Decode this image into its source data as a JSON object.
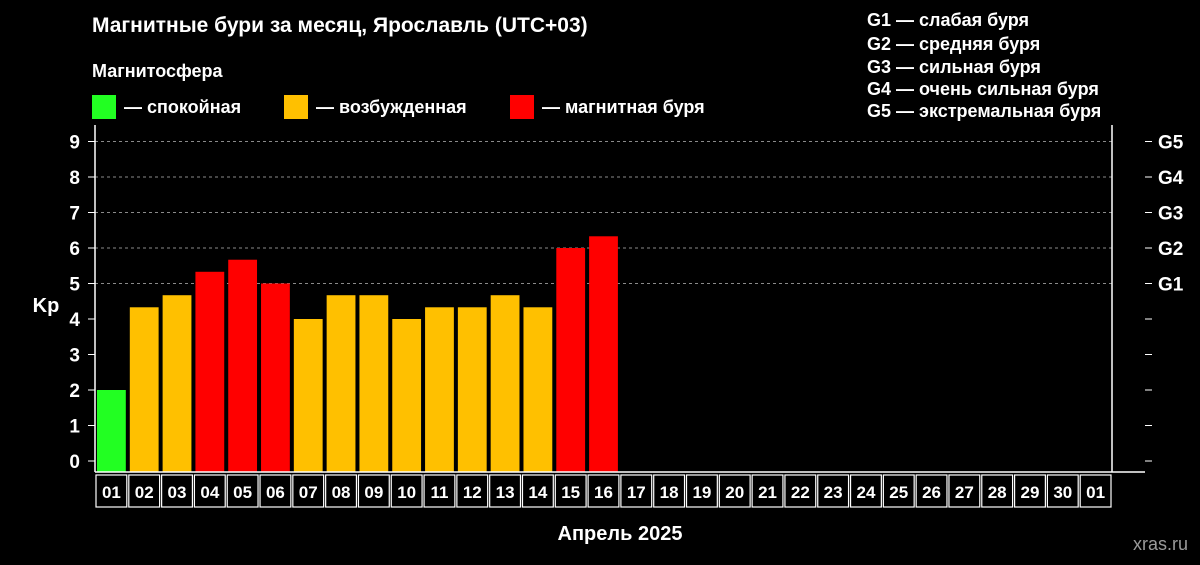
{
  "title": "Магнитные бури за месяц, Ярославль (UTC+03)",
  "legend": {
    "title": "Магнитосфера",
    "items": [
      {
        "label": "— спокойная",
        "color": "#22ff22"
      },
      {
        "label": "— возбужденная",
        "color": "#ffc000"
      },
      {
        "label": "— магнитная буря",
        "color": "#ff0000"
      }
    ]
  },
  "storm_levels": [
    {
      "label": "G1 — слабая буря"
    },
    {
      "label": "G2 — средняя буря"
    },
    {
      "label": "G3 — сильная буря"
    },
    {
      "label": "G4 — очень сильная буря"
    },
    {
      "label": "G5 — экстремальная буря"
    }
  ],
  "watermark": "xras.ru",
  "chart_data": {
    "type": "bar",
    "title": "Магнитные бури за месяц, Ярославль (UTC+03)",
    "xlabel": "Апрель 2025",
    "ylabel": "Kp",
    "ylim": [
      0,
      9
    ],
    "yticks": [
      "0",
      "1",
      "2",
      "3",
      "4",
      "5",
      "6",
      "7",
      "8",
      "9"
    ],
    "right_axis_labels": [
      {
        "kp": 5,
        "label": "G1"
      },
      {
        "kp": 6,
        "label": "G2"
      },
      {
        "kp": 7,
        "label": "G3"
      },
      {
        "kp": 8,
        "label": "G4"
      },
      {
        "kp": 9,
        "label": "G5"
      }
    ],
    "categories": [
      "01",
      "02",
      "03",
      "04",
      "05",
      "06",
      "07",
      "08",
      "09",
      "10",
      "11",
      "12",
      "13",
      "14",
      "15",
      "16",
      "17",
      "18",
      "19",
      "20",
      "21",
      "22",
      "23",
      "24",
      "25",
      "26",
      "27",
      "28",
      "29",
      "30",
      "01"
    ],
    "values": [
      2.0,
      4.33,
      4.67,
      5.33,
      5.67,
      5.0,
      4.0,
      4.67,
      4.67,
      4.0,
      4.33,
      4.33,
      4.67,
      4.33,
      6.0,
      6.33,
      null,
      null,
      null,
      null,
      null,
      null,
      null,
      null,
      null,
      null,
      null,
      null,
      null,
      null,
      null
    ],
    "bar_colors": [
      "#22ff22",
      "#ffc000",
      "#ffc000",
      "#ff0000",
      "#ff0000",
      "#ff0000",
      "#ffc000",
      "#ffc000",
      "#ffc000",
      "#ffc000",
      "#ffc000",
      "#ffc000",
      "#ffc000",
      "#ffc000",
      "#ff0000",
      "#ff0000",
      null,
      null,
      null,
      null,
      null,
      null,
      null,
      null,
      null,
      null,
      null,
      null,
      null,
      null,
      null
    ],
    "grid": true
  }
}
